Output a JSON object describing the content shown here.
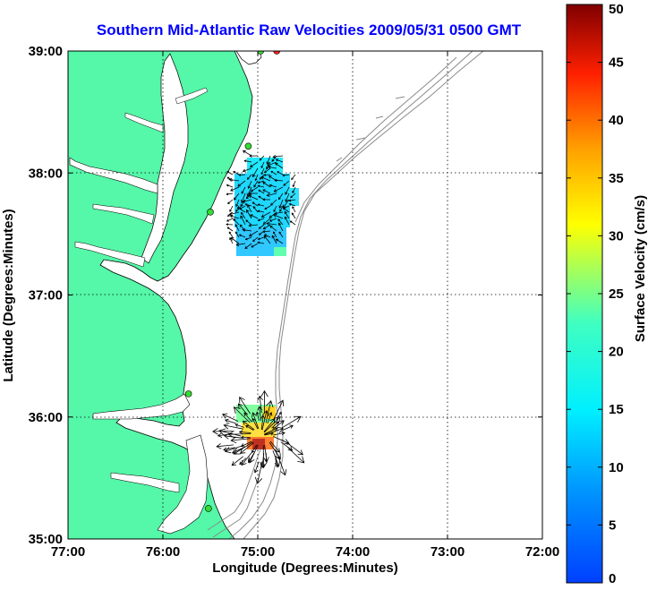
{
  "title": "Southern Mid-Atlantic Raw Velocities 2009/05/31 0500 GMT",
  "map": {
    "xlabel": "Longitude (Degrees:Minutes)",
    "ylabel": "Latitude (Degrees:Minutes)",
    "lon_range": [
      -77,
      -72
    ],
    "lat_range": [
      35,
      39
    ],
    "x_ticks": [
      {
        "value": -77,
        "label": "77:00"
      },
      {
        "value": -76,
        "label": "76:00"
      },
      {
        "value": -75,
        "label": "75:00"
      },
      {
        "value": -74,
        "label": "74:00"
      },
      {
        "value": -73,
        "label": "73:00"
      },
      {
        "value": -72,
        "label": "72:00"
      }
    ],
    "y_ticks": [
      {
        "value": 35,
        "label": "35:00"
      },
      {
        "value": 36,
        "label": "36:00"
      },
      {
        "value": 37,
        "label": "37:00"
      },
      {
        "value": 38,
        "label": "38:00"
      },
      {
        "value": 39,
        "label": "39:00"
      }
    ],
    "grid": "dotted",
    "land_color": "#55f7a8",
    "water_color": "#ffffff",
    "bathymetry_color": "#8a8a8a",
    "vector_color": "#000000",
    "stations": [
      {
        "lon": -74.8,
        "lat": 39.0,
        "color": "#ff2020"
      },
      {
        "lon": -74.97,
        "lat": 39.0,
        "color": "#33dd33"
      },
      {
        "lon": -75.1,
        "lat": 38.22,
        "color": "#33dd33"
      },
      {
        "lon": -75.5,
        "lat": 37.68,
        "color": "#33dd33"
      },
      {
        "lon": -75.73,
        "lat": 36.19,
        "color": "#33dd33"
      },
      {
        "lon": -75.52,
        "lat": 35.25,
        "color": "#33dd33"
      }
    ]
  },
  "colorbar": {
    "label": "Surface Velocity (cm/s)",
    "min": 0,
    "max": 50,
    "ticks": [
      0,
      5,
      10,
      15,
      20,
      25,
      30,
      35,
      40,
      45,
      50
    ],
    "colormap": "jet"
  }
}
